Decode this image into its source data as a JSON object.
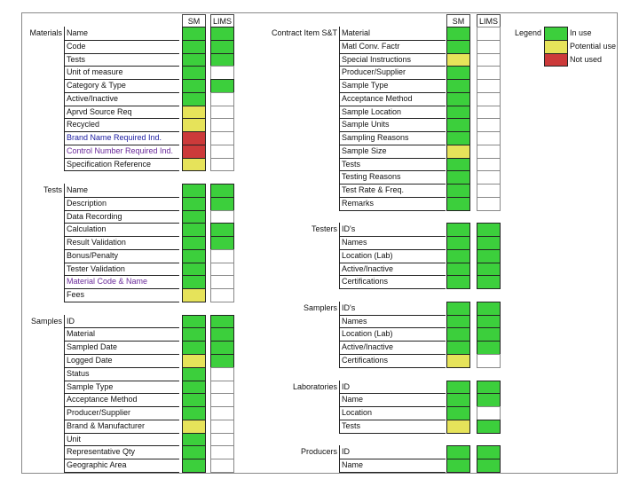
{
  "sides": [
    {
      "columns": [
        "SM",
        "LIMS"
      ],
      "groups": [
        {
          "label": "Materials",
          "rows": [
            {
              "item": "Name",
              "sm": "#3ccf3c",
              "lims": "#3ccf3c"
            },
            {
              "item": "Code",
              "sm": "#3ccf3c",
              "lims": "#3ccf3c"
            },
            {
              "item": "Tests",
              "sm": "#3ccf3c",
              "lims": "#3ccf3c"
            },
            {
              "item": "Unit of measure",
              "sm": "#3ccf3c",
              "lims": null
            },
            {
              "item": "Category & Type",
              "sm": "#3ccf3c",
              "lims": "#3ccf3c"
            },
            {
              "item": "Active/Inactive",
              "sm": "#3ccf3c",
              "lims": null
            },
            {
              "item": "Aprvd Source Req",
              "sm": "#e6e35a",
              "lims": null
            },
            {
              "item": "Recycled",
              "sm": "#e6e35a",
              "lims": null
            },
            {
              "item": "Brand Name Required Ind.",
              "sm": "#cc3a3a",
              "lims": null,
              "text_color": "#1a1aa0"
            },
            {
              "item": "Control Number Required Ind.",
              "sm": "#cc3a3a",
              "lims": null,
              "text_color": "#6a2a9a"
            },
            {
              "item": "Specification Reference",
              "sm": "#e6e35a",
              "lims": null
            }
          ]
        },
        {
          "label": "Tests",
          "rows": [
            {
              "item": "Name",
              "sm": "#3ccf3c",
              "lims": "#3ccf3c"
            },
            {
              "item": "Description",
              "sm": "#3ccf3c",
              "lims": "#3ccf3c"
            },
            {
              "item": "Data Recording",
              "sm": "#3ccf3c",
              "lims": null
            },
            {
              "item": "Calculation",
              "sm": "#3ccf3c",
              "lims": "#3ccf3c"
            },
            {
              "item": "Result Validation",
              "sm": "#3ccf3c",
              "lims": "#3ccf3c"
            },
            {
              "item": "Bonus/Penalty",
              "sm": "#3ccf3c",
              "lims": null
            },
            {
              "item": "Tester Validation",
              "sm": "#3ccf3c",
              "lims": null
            },
            {
              "item": "Material Code & Name",
              "sm": "#3ccf3c",
              "lims": null,
              "text_color": "#6a2a9a"
            },
            {
              "item": "Fees",
              "sm": "#e6e35a",
              "lims": null
            }
          ]
        },
        {
          "label": "Samples",
          "rows": [
            {
              "item": "ID",
              "sm": "#3ccf3c",
              "lims": "#3ccf3c"
            },
            {
              "item": "Material",
              "sm": "#3ccf3c",
              "lims": "#3ccf3c"
            },
            {
              "item": "Sampled Date",
              "sm": "#3ccf3c",
              "lims": "#3ccf3c"
            },
            {
              "item": "Logged Date",
              "sm": "#e6e35a",
              "lims": "#3ccf3c"
            },
            {
              "item": "Status",
              "sm": "#3ccf3c",
              "lims": null
            },
            {
              "item": "Sample Type",
              "sm": "#3ccf3c",
              "lims": null
            },
            {
              "item": "Acceptance Method",
              "sm": "#3ccf3c",
              "lims": null
            },
            {
              "item": "Producer/Supplier",
              "sm": "#3ccf3c",
              "lims": null
            },
            {
              "item": "Brand & Manufacturer",
              "sm": "#e6e35a",
              "lims": null
            },
            {
              "item": "Unit",
              "sm": "#3ccf3c",
              "lims": null
            },
            {
              "item": "Representative Qty",
              "sm": "#3ccf3c",
              "lims": null
            },
            {
              "item": "Geographic Area",
              "sm": "#3ccf3c",
              "lims": null
            }
          ]
        }
      ]
    },
    {
      "columns": [
        "SM",
        "LIMS"
      ],
      "groups": [
        {
          "label": "Contract Item S&T",
          "rows": [
            {
              "item": "Material",
              "sm": "#3ccf3c",
              "lims": null
            },
            {
              "item": "Matl Conv. Factr",
              "sm": "#3ccf3c",
              "lims": null
            },
            {
              "item": "Special Instructions",
              "sm": "#e6e35a",
              "lims": null
            },
            {
              "item": "Producer/Supplier",
              "sm": "#3ccf3c",
              "lims": null
            },
            {
              "item": "Sample Type",
              "sm": "#3ccf3c",
              "lims": null
            },
            {
              "item": "Acceptance Method",
              "sm": "#3ccf3c",
              "lims": null
            },
            {
              "item": "Sample Location",
              "sm": "#3ccf3c",
              "lims": null
            },
            {
              "item": "Sample Units",
              "sm": "#3ccf3c",
              "lims": null
            },
            {
              "item": "Sampling Reasons",
              "sm": "#3ccf3c",
              "lims": null
            },
            {
              "item": "Sample Size",
              "sm": "#e6e35a",
              "lims": null
            },
            {
              "item": "Tests",
              "sm": "#3ccf3c",
              "lims": null
            },
            {
              "item": "Testing Reasons",
              "sm": "#3ccf3c",
              "lims": null
            },
            {
              "item": "Test Rate & Freq.",
              "sm": "#3ccf3c",
              "lims": null
            },
            {
              "item": "Remarks",
              "sm": "#3ccf3c",
              "lims": null
            }
          ]
        },
        {
          "label": "Testers",
          "rows": [
            {
              "item": "ID's",
              "sm": "#3ccf3c",
              "lims": "#3ccf3c"
            },
            {
              "item": "Names",
              "sm": "#3ccf3c",
              "lims": "#3ccf3c"
            },
            {
              "item": "Location (Lab)",
              "sm": "#3ccf3c",
              "lims": "#3ccf3c"
            },
            {
              "item": "Active/Inactive",
              "sm": "#3ccf3c",
              "lims": "#3ccf3c"
            },
            {
              "item": "Certifications",
              "sm": "#3ccf3c",
              "lims": "#3ccf3c"
            }
          ]
        },
        {
          "label": "Samplers",
          "rows": [
            {
              "item": "ID's",
              "sm": "#3ccf3c",
              "lims": "#3ccf3c"
            },
            {
              "item": "Names",
              "sm": "#3ccf3c",
              "lims": "#3ccf3c"
            },
            {
              "item": "Location (Lab)",
              "sm": "#3ccf3c",
              "lims": "#3ccf3c"
            },
            {
              "item": "Active/Inactive",
              "sm": "#3ccf3c",
              "lims": "#3ccf3c"
            },
            {
              "item": "Certifications",
              "sm": "#e6e35a",
              "lims": null
            }
          ]
        },
        {
          "label": "Laboratories",
          "rows": [
            {
              "item": "ID",
              "sm": "#3ccf3c",
              "lims": "#3ccf3c"
            },
            {
              "item": "Name",
              "sm": "#3ccf3c",
              "lims": "#3ccf3c"
            },
            {
              "item": "Location",
              "sm": "#3ccf3c",
              "lims": null
            },
            {
              "item": "Tests",
              "sm": "#e6e35a",
              "lims": "#3ccf3c"
            }
          ]
        },
        {
          "label": "Producers",
          "rows": [
            {
              "item": "ID",
              "sm": "#3ccf3c",
              "lims": "#3ccf3c"
            },
            {
              "item": "Name",
              "sm": "#3ccf3c",
              "lims": "#3ccf3c"
            }
          ]
        }
      ]
    }
  ],
  "legend": {
    "title": "Legend",
    "items": [
      {
        "label": "In use",
        "color": "#3ccf3c"
      },
      {
        "label": "Potential use",
        "color": "#e6e35a"
      },
      {
        "label": "Not used",
        "color": "#cc3a3a"
      }
    ]
  }
}
